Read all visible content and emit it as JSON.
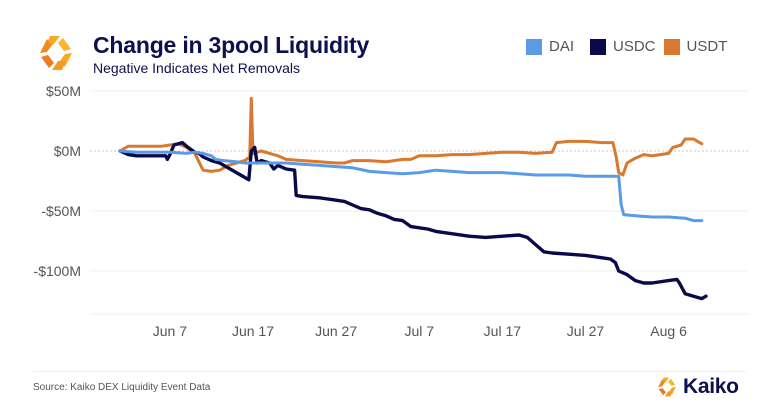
{
  "header": {
    "title": "Change in 3pool Liquidity",
    "subtitle": "Negative Indicates Net Removals",
    "logo_icon": "kaiko-logo-icon"
  },
  "legend": [
    {
      "name": "DAI",
      "color": "#5b9be6"
    },
    {
      "name": "USDC",
      "color": "#0a0a4a"
    },
    {
      "name": "USDT",
      "color": "#d9782e"
    }
  ],
  "footer": {
    "source": "Source: Kaiko DEX Liquidity Event Data",
    "brand": "Kaiko",
    "brand_icon": "kaiko-logo-icon"
  },
  "chart_data": {
    "type": "line",
    "title": "Change in 3pool Liquidity",
    "subtitle": "Negative Indicates Net Removals",
    "xlabel": "",
    "ylabel": "",
    "x_unit": "days since Jun 7",
    "x_range": [
      -6,
      64.5
    ],
    "ylim": [
      -135,
      58
    ],
    "y_unit": "$M",
    "y_ticks": [
      {
        "value": 50,
        "label": "$50M"
      },
      {
        "value": 0,
        "label": "$0M"
      },
      {
        "value": -50,
        "label": "-$50M"
      },
      {
        "value": -100,
        "label": "-$100M"
      }
    ],
    "x_ticks": [
      {
        "value": 0,
        "label": "Jun 7"
      },
      {
        "value": 10,
        "label": "Jun 17"
      },
      {
        "value": 20,
        "label": "Jun 27"
      },
      {
        "value": 30,
        "label": "Jul 7"
      },
      {
        "value": 40,
        "label": "Jul 17"
      },
      {
        "value": 50,
        "label": "Jul 27"
      },
      {
        "value": 60,
        "label": "Aug 6"
      }
    ],
    "grid": "horizontal",
    "zero_line": "dotted",
    "legend_position": "top-right",
    "series": [
      {
        "name": "DAI",
        "color": "#5b9be6",
        "points": [
          [
            -6,
            0
          ],
          [
            -4,
            -1
          ],
          [
            -2,
            -1
          ],
          [
            0,
            -1
          ],
          [
            2,
            -2
          ],
          [
            3,
            -1
          ],
          [
            4,
            -2
          ],
          [
            5,
            -4
          ],
          [
            5.5,
            -7
          ],
          [
            6.5,
            -8
          ],
          [
            8,
            -9
          ],
          [
            9,
            -10
          ],
          [
            10,
            -10
          ],
          [
            12,
            -10
          ],
          [
            14,
            -10
          ],
          [
            16,
            -11
          ],
          [
            18,
            -12
          ],
          [
            20,
            -13
          ],
          [
            22,
            -14
          ],
          [
            24,
            -17
          ],
          [
            26,
            -18
          ],
          [
            28,
            -19
          ],
          [
            30,
            -18
          ],
          [
            31,
            -17
          ],
          [
            32,
            -16
          ],
          [
            34,
            -17
          ],
          [
            36,
            -18
          ],
          [
            38,
            -18
          ],
          [
            40,
            -18
          ],
          [
            42,
            -19
          ],
          [
            44,
            -20
          ],
          [
            46,
            -20
          ],
          [
            48,
            -20
          ],
          [
            50,
            -21
          ],
          [
            52,
            -21
          ],
          [
            54,
            -21
          ],
          [
            54.3,
            -45
          ],
          [
            54.6,
            -53
          ],
          [
            56,
            -54
          ],
          [
            58,
            -55
          ],
          [
            60,
            -55
          ],
          [
            62,
            -56
          ],
          [
            63,
            -58
          ],
          [
            64,
            -58
          ]
        ]
      },
      {
        "name": "USDC",
        "color": "#0a0a4a",
        "points": [
          [
            -6,
            0
          ],
          [
            -5,
            -3
          ],
          [
            -4,
            -4
          ],
          [
            -2,
            -4
          ],
          [
            -0.5,
            -4
          ],
          [
            -0.3,
            -7
          ],
          [
            0,
            -3
          ],
          [
            0.5,
            5
          ],
          [
            1.5,
            7
          ],
          [
            2,
            4
          ],
          [
            3,
            -1
          ],
          [
            3.5,
            -2
          ],
          [
            4,
            -5
          ],
          [
            5,
            -8
          ],
          [
            6,
            -10
          ],
          [
            7,
            -14
          ],
          [
            8,
            -18
          ],
          [
            9,
            -22
          ],
          [
            9.5,
            -24
          ],
          [
            9.8,
            0
          ],
          [
            10.2,
            3
          ],
          [
            10.5,
            -10
          ],
          [
            11,
            -8
          ],
          [
            12,
            -10
          ],
          [
            12.5,
            -15
          ],
          [
            13,
            -12
          ],
          [
            14,
            -15
          ],
          [
            15,
            -16
          ],
          [
            15.2,
            -37
          ],
          [
            16,
            -38
          ],
          [
            18,
            -39
          ],
          [
            19,
            -40
          ],
          [
            20,
            -41
          ],
          [
            21,
            -42
          ],
          [
            22,
            -45
          ],
          [
            23,
            -48
          ],
          [
            24,
            -49
          ],
          [
            25,
            -52
          ],
          [
            26,
            -54
          ],
          [
            27,
            -57
          ],
          [
            28,
            -58
          ],
          [
            29,
            -63
          ],
          [
            30,
            -64
          ],
          [
            31,
            -65
          ],
          [
            32,
            -67
          ],
          [
            34,
            -69
          ],
          [
            36,
            -71
          ],
          [
            38,
            -72
          ],
          [
            40,
            -71
          ],
          [
            42,
            -70
          ],
          [
            43,
            -72
          ],
          [
            44,
            -78
          ],
          [
            45,
            -84
          ],
          [
            46,
            -85
          ],
          [
            48,
            -86
          ],
          [
            50,
            -87
          ],
          [
            51,
            -88
          ],
          [
            52,
            -89
          ],
          [
            53,
            -90
          ],
          [
            53.6,
            -93
          ],
          [
            54,
            -100
          ],
          [
            55,
            -103
          ],
          [
            56,
            -108
          ],
          [
            57,
            -110
          ],
          [
            58,
            -110
          ],
          [
            60,
            -108
          ],
          [
            61,
            -107
          ],
          [
            61.3,
            -110
          ],
          [
            62,
            -119
          ],
          [
            63,
            -121
          ],
          [
            64,
            -123
          ],
          [
            64.5,
            -121
          ]
        ]
      },
      {
        "name": "USDT",
        "color": "#d9782e",
        "points": [
          [
            -6,
            0
          ],
          [
            -5,
            4
          ],
          [
            -3,
            4
          ],
          [
            -1,
            4
          ],
          [
            0,
            5
          ],
          [
            1,
            6
          ],
          [
            2,
            3
          ],
          [
            3,
            -2
          ],
          [
            4,
            -16
          ],
          [
            5,
            -17
          ],
          [
            6,
            -16
          ],
          [
            7,
            -12
          ],
          [
            8,
            -10
          ],
          [
            9,
            -8
          ],
          [
            9.6,
            -5
          ],
          [
            9.8,
            44
          ],
          [
            10,
            -2
          ],
          [
            11,
            0
          ],
          [
            12,
            -2
          ],
          [
            13,
            -4
          ],
          [
            14,
            -7
          ],
          [
            16,
            -8
          ],
          [
            18,
            -9
          ],
          [
            20,
            -10
          ],
          [
            21,
            -10
          ],
          [
            22,
            -8
          ],
          [
            24,
            -8
          ],
          [
            26,
            -9
          ],
          [
            28,
            -7
          ],
          [
            29,
            -7
          ],
          [
            30,
            -4
          ],
          [
            32,
            -4
          ],
          [
            34,
            -3
          ],
          [
            36,
            -3
          ],
          [
            38,
            -2
          ],
          [
            40,
            -1
          ],
          [
            42,
            -1
          ],
          [
            44,
            -2
          ],
          [
            46,
            -1
          ],
          [
            46.5,
            7
          ],
          [
            48,
            8
          ],
          [
            50,
            8
          ],
          [
            52,
            7
          ],
          [
            53.3,
            7
          ],
          [
            53.7,
            -5
          ],
          [
            54,
            -18
          ],
          [
            54.5,
            -20
          ],
          [
            55,
            -10
          ],
          [
            56,
            -6
          ],
          [
            57,
            -3
          ],
          [
            58,
            -4
          ],
          [
            59,
            -3
          ],
          [
            60,
            -2
          ],
          [
            60.5,
            3
          ],
          [
            61.5,
            5
          ],
          [
            62,
            10
          ],
          [
            63,
            10
          ],
          [
            63.5,
            8
          ],
          [
            64,
            6
          ]
        ]
      }
    ]
  }
}
